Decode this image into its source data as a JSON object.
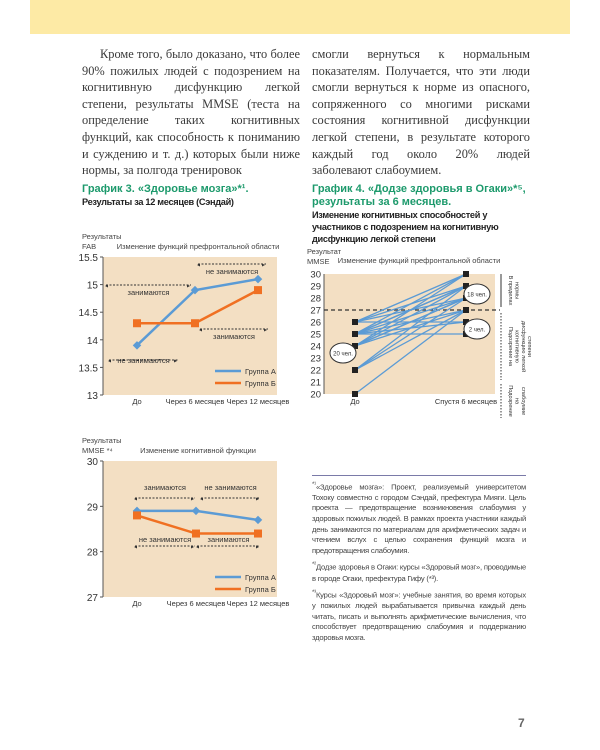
{
  "body_text": {
    "col1": "Кроме того, было доказано, что более 90% пожилых людей с подозрением на когнитивную дисфункцию легкой степени, результаты MMSE (теста на определение таких когнитивных функций, как способность к пониманию и суждению и т. д.) которых были ниже нормы, за полгода тренировок",
    "col2": "смогли вернуться к нормальным показателям. Получается, что эти люди смогли вернуться к норме из опасного, сопряженного со многими рисками состояния когнитивной дисфункции легкой степени, в результате которого каждый год около 20% людей заболевают слабоумием."
  },
  "chart3": {
    "title": "График 3. «Здоровье мозга»*¹.",
    "subtitle": "Результаты за 12 месяцев (Сэндай)"
  },
  "chart4": {
    "title": "График 4. «Додзе здоровья в Огаки»*⁵, результаты за 6 месяцев.",
    "subtitle": "Изменение когнитивных способностей у участников с подозрением на когнитивную дисфункцию легкой степени"
  },
  "chart_data": [
    {
      "type": "line",
      "title": "Изменение функций префронтальной области",
      "ylabel": "Результаты FAB",
      "categories": [
        "До",
        "Через 6 месяцев",
        "Через 12 месяцев"
      ],
      "ylim": [
        13,
        15.5
      ],
      "yticks": [
        "13",
        "13.5",
        "14",
        "14.5",
        "15",
        "15.5"
      ],
      "series": [
        {
          "name": "Группа А",
          "values": [
            13.9,
            14.9,
            15.1
          ],
          "color": "#5b9bd5"
        },
        {
          "name": "Группа Б",
          "values": [
            14.3,
            14.3,
            14.9
          ],
          "color": "#f07022"
        }
      ],
      "annotations": [
        "занимаются",
        "не занимаются",
        "занимаются",
        "не занимаются"
      ],
      "background": "#f3dfc3",
      "legend": "bottom-right"
    },
    {
      "type": "line",
      "title": "Изменение когнитивной функции",
      "ylabel": "Результаты MMSE *⁴",
      "categories": [
        "До",
        "Через 6 месяцев",
        "Через 12 месяцев"
      ],
      "ylim": [
        27,
        30
      ],
      "yticks": [
        "27",
        "28",
        "29",
        "30"
      ],
      "series": [
        {
          "name": "Группа А",
          "values": [
            28.9,
            28.9,
            28.7
          ],
          "color": "#5b9bd5"
        },
        {
          "name": "Группа Б",
          "values": [
            28.8,
            28.4,
            28.4
          ],
          "color": "#f07022"
        }
      ],
      "annotations": [
        "занимаются",
        "не занимаются",
        "не занимаются",
        "занимаются"
      ],
      "background": "#f3dfc3",
      "legend": "bottom-right"
    },
    {
      "type": "line",
      "title": "Изменение функций префронтальной области",
      "ylabel": "Результат MMSE",
      "categories": [
        "До",
        "Спустя 6 месяцев"
      ],
      "ylim": [
        20,
        30
      ],
      "yticks": [
        "20",
        "21",
        "22",
        "23",
        "24",
        "25",
        "26",
        "27",
        "28",
        "29",
        "30"
      ],
      "threshold": 27,
      "pairs": [
        [
          26,
          30
        ],
        [
          26,
          29
        ],
        [
          26,
          26
        ],
        [
          25,
          30
        ],
        [
          25,
          29
        ],
        [
          25,
          28
        ],
        [
          25,
          27
        ],
        [
          25,
          25
        ],
        [
          24,
          29
        ],
        [
          24,
          28
        ],
        [
          24,
          27
        ],
        [
          24,
          30
        ],
        [
          22,
          29
        ],
        [
          22,
          27
        ],
        [
          20,
          27
        ],
        [
          26,
          28
        ],
        [
          25,
          29
        ],
        [
          24,
          28
        ],
        [
          22,
          28
        ],
        [
          25,
          26
        ]
      ],
      "bubbles": [
        "20 чел.",
        "18 чел.",
        "2 чел."
      ],
      "side_labels": [
        "В пределах нормы",
        "Подозрение на когнитивную дисфункцию легкой степени",
        "Подозрение на слабоумие"
      ],
      "color": "#5b9bd5",
      "background": "#f3dfc3"
    }
  ],
  "footnotes": [
    {
      "mark": "*¹",
      "text": "«Здоровье мозга»: Проект, реализуемый университетом Тохоку совместно с городом Сэндай, префектура Мияги. Цель проекта — предотвращение возникновения слабоумия у здоровых пожилых людей. В рамках проекта участники каждый день занимаются по материалам для арифметических задач и чтением вслух с целью сохранения функций мозга и предотвращения слабоумия."
    },
    {
      "mark": "*²",
      "text": "Додзе здоровья в Огаки: курсы «Здоровый мозг», проводимые в городе Огаки, префектура Гифу (*³)."
    },
    {
      "mark": "*³",
      "text": "Курсы «Здоровый мозг»: учебные занятия, во время которых у пожилых людей вырабатывается привычка каждый день читать, писать и выполнять арифметические вычисления, что способствует предотвращению слабоумия и поддержанию здоровья мозга."
    }
  ],
  "page_number": "7",
  "colors": {
    "band": "#fdeaa5",
    "title_green": "#1d9a6c"
  }
}
